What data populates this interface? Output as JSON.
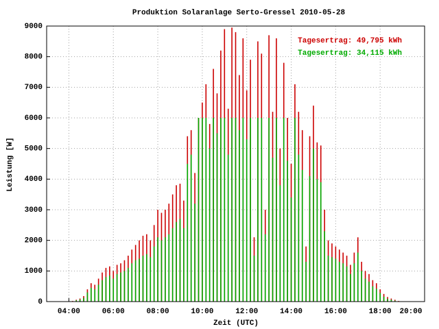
{
  "chart_data": {
    "type": "impulse",
    "title": "Produktion Solaranlage Serto-Gressel 2010-05-28",
    "xlabel": "Zeit (UTC)",
    "ylabel": "Leistung [W]",
    "xlim": [
      180,
      1200
    ],
    "ylim": [
      0,
      9000
    ],
    "xticks": [
      {
        "value": 240,
        "label": "04:00"
      },
      {
        "value": 360,
        "label": "06:00"
      },
      {
        "value": 480,
        "label": "08:00"
      },
      {
        "value": 600,
        "label": "10:00"
      },
      {
        "value": 720,
        "label": "12:00"
      },
      {
        "value": 840,
        "label": "14:00"
      },
      {
        "value": 960,
        "label": "16:00"
      },
      {
        "value": 1080,
        "label": "18:00"
      },
      {
        "value": 1200,
        "label": "20:00"
      }
    ],
    "yticks": [
      0,
      1000,
      2000,
      3000,
      4000,
      5000,
      6000,
      7000,
      8000,
      9000
    ],
    "grid": true,
    "legend": "top-right",
    "x": [
      240,
      250,
      260,
      270,
      280,
      290,
      300,
      310,
      320,
      330,
      340,
      350,
      360,
      370,
      380,
      390,
      400,
      410,
      420,
      430,
      440,
      450,
      460,
      470,
      480,
      490,
      500,
      510,
      520,
      530,
      540,
      550,
      560,
      570,
      580,
      590,
      600,
      610,
      620,
      630,
      640,
      650,
      660,
      670,
      680,
      690,
      700,
      710,
      720,
      730,
      740,
      750,
      760,
      770,
      780,
      790,
      800,
      810,
      820,
      830,
      840,
      850,
      860,
      870,
      880,
      890,
      900,
      910,
      920,
      930,
      940,
      950,
      960,
      970,
      980,
      990,
      1000,
      1010,
      1020,
      1030,
      1040,
      1050,
      1060,
      1070,
      1080,
      1090,
      1100,
      1110,
      1120,
      1130,
      1140
    ],
    "series": [
      {
        "name": "Tagesertrag: 49,795 kWh",
        "color": "#cc0000",
        "values": [
          0,
          20,
          60,
          100,
          180,
          400,
          600,
          550,
          750,
          950,
          1100,
          1150,
          1000,
          1200,
          1250,
          1350,
          1500,
          1700,
          1850,
          2000,
          2150,
          2200,
          2000,
          2500,
          3000,
          2900,
          3000,
          3200,
          3500,
          3800,
          3850,
          3300,
          5400,
          5600,
          4200,
          6000,
          6500,
          7100,
          5800,
          7600,
          6800,
          8200,
          8900,
          6300,
          8950,
          8800,
          7400,
          8600,
          6900,
          7900,
          2100,
          8500,
          8100,
          3000,
          8700,
          6200,
          8600,
          5000,
          7800,
          6000,
          4500,
          7100,
          6200,
          5600,
          1800,
          5400,
          6400,
          5200,
          5100,
          3000,
          2000,
          1900,
          1800,
          1700,
          1600,
          1500,
          1200,
          1600,
          2100,
          1300,
          1000,
          900,
          700,
          600,
          400,
          250,
          150,
          100,
          60,
          20,
          0
        ]
      },
      {
        "name": "Tagesertrag: 34,115 kWh",
        "color": "#00aa00",
        "values": [
          0,
          10,
          40,
          70,
          120,
          300,
          450,
          400,
          550,
          700,
          800,
          850,
          750,
          900,
          950,
          1000,
          1100,
          1250,
          1350,
          1400,
          1500,
          1550,
          1450,
          1800,
          2100,
          2000,
          2100,
          2200,
          2400,
          2600,
          2700,
          2400,
          4500,
          4800,
          3200,
          6000,
          6000,
          6000,
          5000,
          6000,
          5500,
          6000,
          6000,
          4800,
          6000,
          6000,
          5600,
          6000,
          5300,
          6000,
          1500,
          6000,
          6000,
          2200,
          6000,
          4700,
          6000,
          3800,
          6000,
          4600,
          3400,
          6000,
          4800,
          4300,
          1300,
          4100,
          5000,
          4000,
          3900,
          2300,
          1500,
          1450,
          1400,
          1300,
          1250,
          1150,
          900,
          1250,
          1600,
          1000,
          750,
          650,
          500,
          420,
          280,
          160,
          90,
          60,
          30,
          10,
          0
        ]
      }
    ]
  }
}
